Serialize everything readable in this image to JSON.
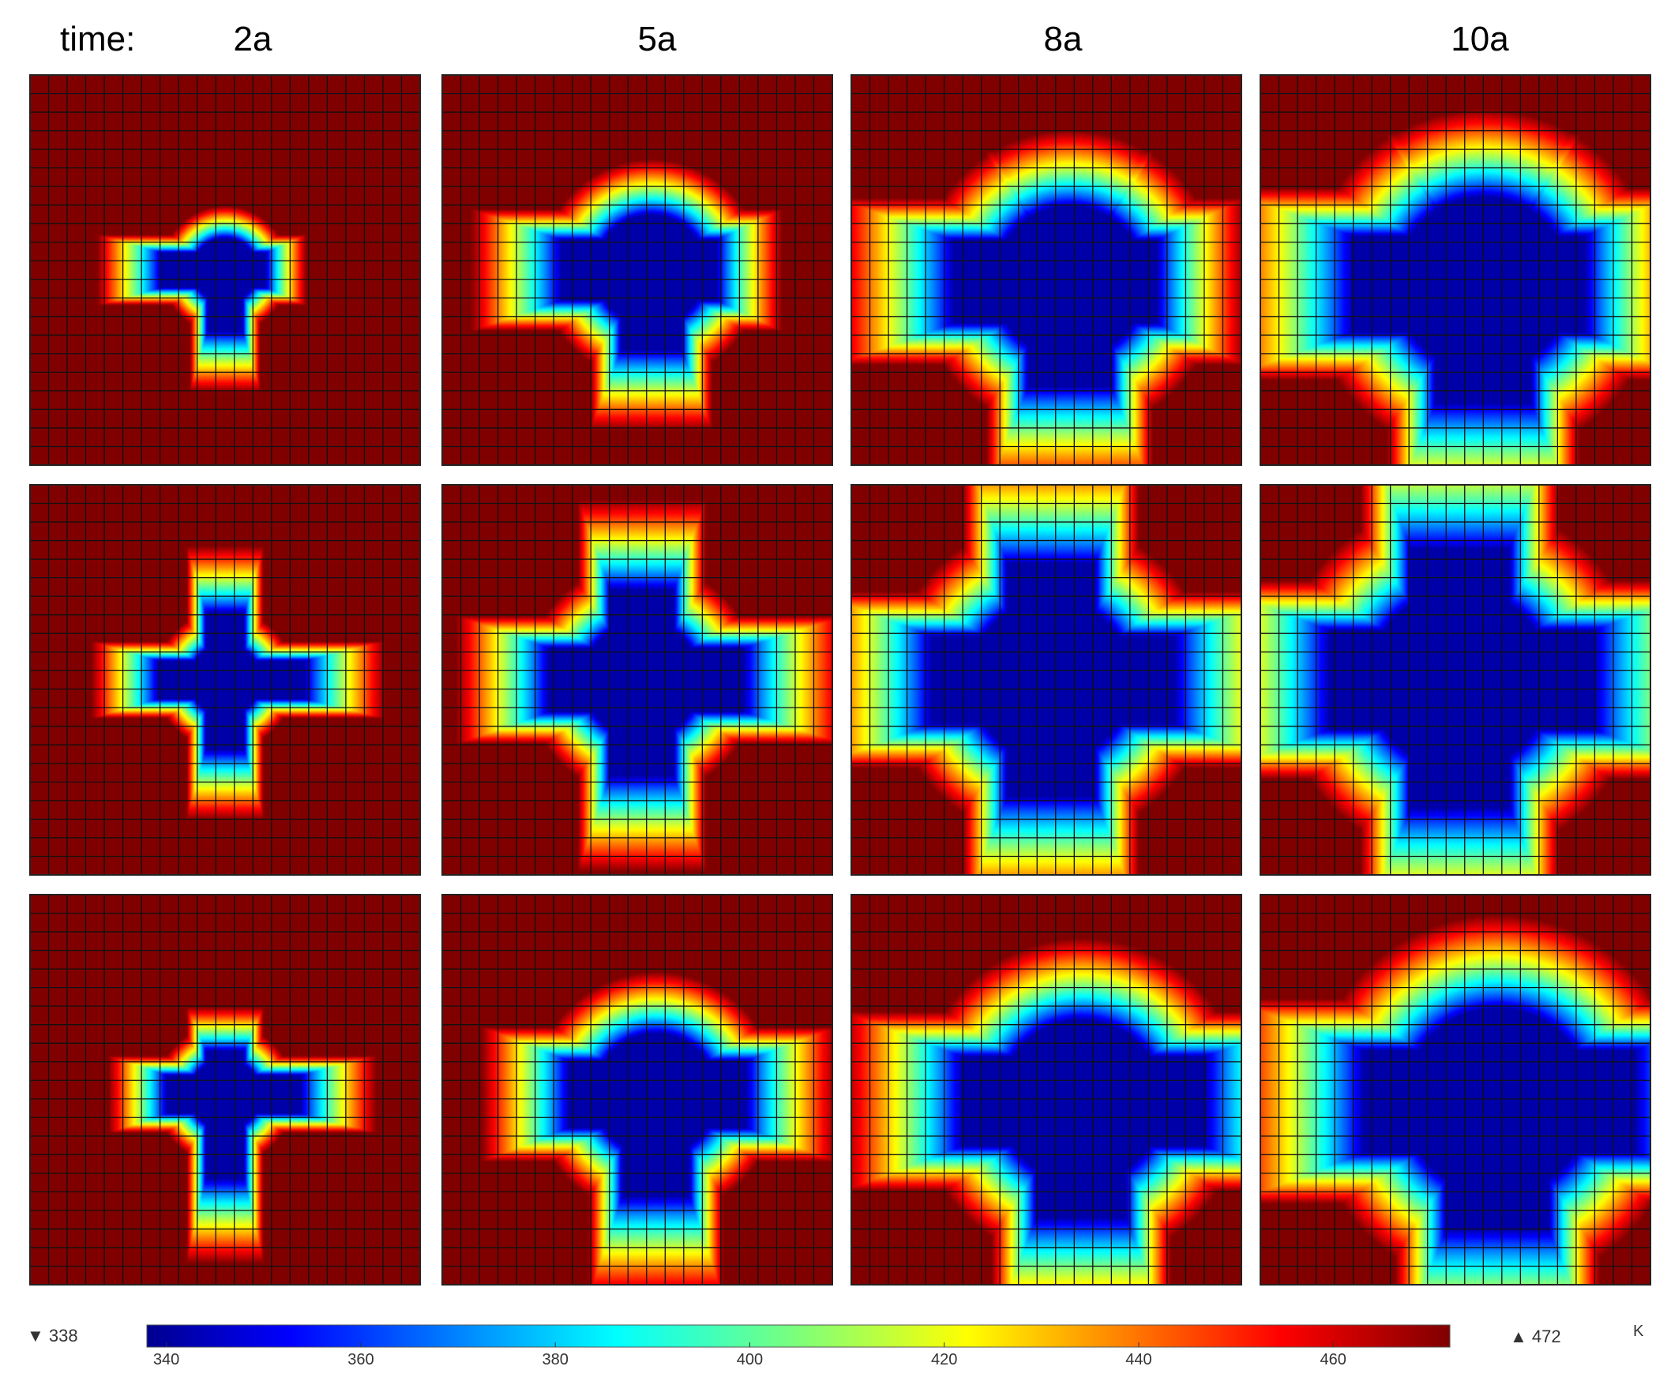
{
  "chart_data": {
    "type": "heatmap",
    "time_label": "time:",
    "columns": [
      "2a",
      "5a",
      "8a",
      "10a"
    ],
    "rows": 3,
    "grid_cells_per_side": 21,
    "colormap": "jet",
    "colorbar": {
      "min": 338,
      "max": 472,
      "min_marker": "▼ 338",
      "max_marker": "▲ 472",
      "ticks": [
        340,
        360,
        380,
        400,
        420,
        440,
        460
      ],
      "unit": "K"
    },
    "panels": [
      [
        {
          "time": "2a",
          "cold_radius": 0.22,
          "arms": [
            0.44,
            0.18,
            0.28,
            0.42
          ],
          "skew": [
            0.0,
            0.0
          ]
        },
        {
          "time": "5a",
          "cold_radius": 0.38,
          "arms": [
            0.62,
            0.32,
            0.45,
            0.55
          ],
          "skew": [
            0.06,
            0.0
          ]
        },
        {
          "time": "8a",
          "cold_radius": 0.52,
          "arms": [
            0.8,
            0.45,
            0.6,
            0.72
          ],
          "skew": [
            0.1,
            0.05
          ]
        },
        {
          "time": "10a",
          "cold_radius": 0.6,
          "arms": [
            0.9,
            0.52,
            0.7,
            0.82
          ],
          "skew": [
            0.12,
            0.06
          ]
        }
      ],
      [
        {
          "time": "2a",
          "cold_radius": 0.24,
          "arms": [
            0.46,
            0.46,
            0.55,
            0.48
          ],
          "skew": [
            0.0,
            0.0
          ]
        },
        {
          "time": "5a",
          "cold_radius": 0.4,
          "arms": [
            0.64,
            0.62,
            0.7,
            0.66
          ],
          "skew": [
            0.02,
            0.0
          ]
        },
        {
          "time": "8a",
          "cold_radius": 0.55,
          "arms": [
            0.82,
            0.8,
            0.85,
            0.8
          ],
          "skew": [
            0.02,
            0.0
          ]
        },
        {
          "time": "10a",
          "cold_radius": 0.62,
          "arms": [
            0.9,
            0.9,
            0.92,
            0.88
          ],
          "skew": [
            0.02,
            0.0
          ]
        }
      ],
      [
        {
          "time": "2a",
          "cold_radius": 0.24,
          "arms": [
            0.4,
            0.3,
            0.52,
            0.58
          ],
          "skew": [
            0.0,
            0.02
          ]
        },
        {
          "time": "5a",
          "cold_radius": 0.42,
          "arms": [
            0.6,
            0.3,
            0.62,
            0.7
          ],
          "skew": [
            0.08,
            0.02
          ]
        },
        {
          "time": "8a",
          "cold_radius": 0.56,
          "arms": [
            0.82,
            0.32,
            0.85,
            0.8
          ],
          "skew": [
            0.15,
            0.05
          ]
        },
        {
          "time": "10a",
          "cold_radius": 0.64,
          "arms": [
            0.92,
            0.3,
            0.95,
            0.88
          ],
          "skew": [
            0.18,
            0.05
          ]
        }
      ]
    ]
  }
}
